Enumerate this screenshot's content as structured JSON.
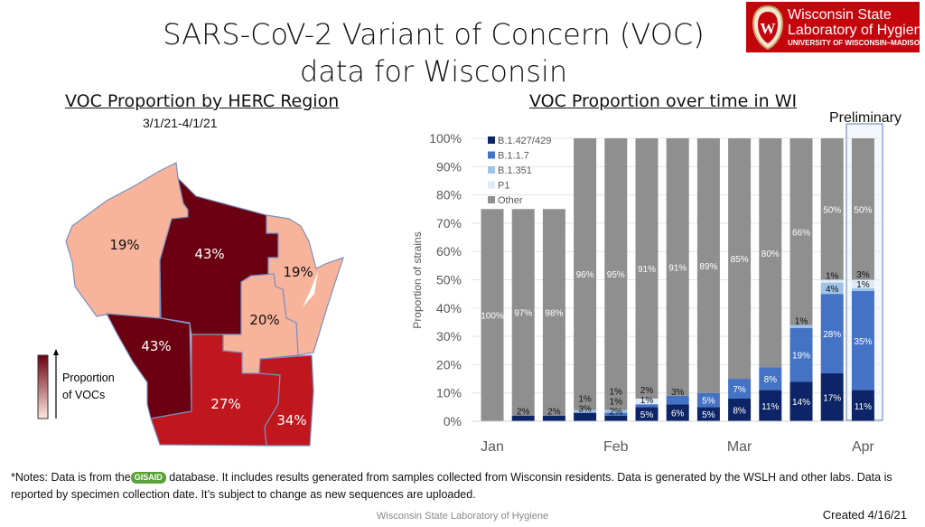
{
  "title_line1": "SARS-CoV-2 Variant of Concern (VOC)",
  "title_line2": "data for Wisconsin",
  "logo": {
    "line1": "Wisconsin State",
    "line2": "Laboratory of Hygiene",
    "line3": "UNIVERSITY OF WISCONSIN–MADISON",
    "color": "#c5050c"
  },
  "map": {
    "title": "VOC Proportion by HERC Region",
    "date_range": "3/1/21-4/1/21",
    "legend_label_1": "Proportion",
    "legend_label_2": "of VOCs",
    "regions": [
      {
        "value": "19%",
        "color": "#f8b39b"
      },
      {
        "value": "43%",
        "color": "#6b0010"
      },
      {
        "value": "19%",
        "color": "#f8b39b"
      },
      {
        "value": "20%",
        "color": "#f8b39b"
      },
      {
        "value": "43%",
        "color": "#6b0010"
      },
      {
        "value": "27%",
        "color": "#c0171e"
      },
      {
        "value": "34%",
        "color": "#c0171e"
      }
    ]
  },
  "chart_data": {
    "type": "bar",
    "stacked": true,
    "title": "VOC Proportion over time in WI",
    "annotation": "Preliminary",
    "ylabel": "Proportion of strains",
    "ylim": [
      0,
      100
    ],
    "yticks": [
      "0%",
      "10%",
      "20%",
      "30%",
      "40%",
      "50%",
      "60%",
      "70%",
      "80%",
      "90%",
      "100%"
    ],
    "xticks": [
      {
        "label": "Jan",
        "bar": 0
      },
      {
        "label": "Feb",
        "bar": 4
      },
      {
        "label": "Mar",
        "bar": 8
      },
      {
        "label": "Apr",
        "bar": 12
      }
    ],
    "legend_position": "top-left",
    "grid": true,
    "series": [
      {
        "name": "B.1.427/429",
        "color": "#0d2566",
        "values": [
          0,
          2,
          2,
          3,
          2,
          5,
          6,
          5,
          8,
          11,
          14,
          17,
          11
        ]
      },
      {
        "name": "B.1.1.7",
        "color": "#4472c4",
        "values": [
          0,
          0,
          0,
          0,
          1,
          1,
          3,
          5,
          7,
          8,
          19,
          28,
          35
        ]
      },
      {
        "name": "B.1.351",
        "color": "#9dc3e6",
        "values": [
          0,
          0,
          0,
          1,
          1,
          0,
          0,
          0,
          0,
          0,
          1,
          4,
          1
        ]
      },
      {
        "name": "P1",
        "color": "#deebf7",
        "values": [
          0,
          0,
          0,
          0,
          0,
          2,
          0,
          0,
          0,
          0,
          0,
          1,
          3
        ]
      },
      {
        "name": "Other",
        "color": "#8f8f8f",
        "values": [
          100,
          97,
          98,
          96,
          95,
          91,
          91,
          89,
          85,
          80,
          66,
          50,
          50
        ]
      }
    ],
    "bar_top": [
      75,
      75,
      75,
      100,
      100,
      100,
      100,
      100,
      100,
      100,
      100,
      100,
      100
    ]
  },
  "notes_prefix": "*Notes: Data is from the",
  "gisaid": "GISAID",
  "notes_rest": "database. It includes results generated from samples collected from Wisconsin residents. Data is generated by the WSLH and other labs. Data is reported by specimen collection date. It’s subject to change as new sequences are uploaded.",
  "footer": "Wisconsin State Laboratory of Hygiene",
  "created": "Created 4/16/21"
}
